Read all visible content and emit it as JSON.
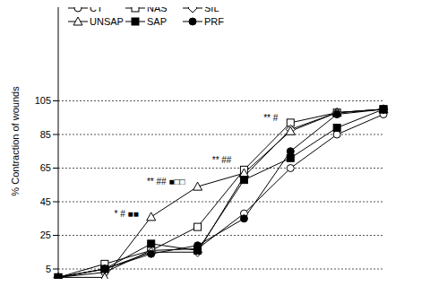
{
  "chart_data": {
    "type": "line",
    "y_label": "% Contraction of wounds",
    "categories": [
      null,
      null,
      null,
      null,
      null,
      null,
      null,
      null
    ],
    "ylim": [
      -3,
      165
    ],
    "yticks": [
      5,
      25,
      45,
      65,
      85,
      105
    ],
    "grid": true,
    "tick_labels": "y",
    "legend": "top-left",
    "series": [
      {
        "name": "CT",
        "color": "#000000",
        "marker": "open_circle",
        "values": [
          0,
          3,
          16,
          17,
          38,
          65,
          85,
          97
        ]
      },
      {
        "name": "NAS",
        "color": "#000000",
        "marker": "open_square",
        "values": [
          0,
          8,
          16,
          30,
          64,
          92,
          98,
          100
        ]
      },
      {
        "name": "SIL",
        "color": "#000000",
        "marker": "open_diamond",
        "values": [
          0,
          5,
          15,
          15,
          60,
          88,
          98,
          100
        ]
      },
      {
        "name": "UNSAP",
        "color": "#000000",
        "marker": "open_triangle",
        "values": [
          0,
          0,
          36,
          54,
          62,
          87,
          98,
          100
        ]
      },
      {
        "name": "SAP",
        "color": "#000000",
        "marker": "filled_square",
        "values": [
          0,
          5,
          20,
          16,
          58,
          71,
          89,
          100
        ]
      },
      {
        "name": "PRF",
        "color": "#000000",
        "marker": "filled_circle",
        "values": [
          0,
          5,
          14,
          19,
          35,
          75,
          97,
          100
        ]
      }
    ],
    "annotations": [
      {
        "text": "* # ■■",
        "x": 2,
        "y": 38
      },
      {
        "text": "** ## ■□□",
        "x": 3,
        "y": 57
      },
      {
        "text": "** ##",
        "x": 4,
        "y": 70
      },
      {
        "text": "** #",
        "x": 5,
        "y": 95
      }
    ]
  }
}
